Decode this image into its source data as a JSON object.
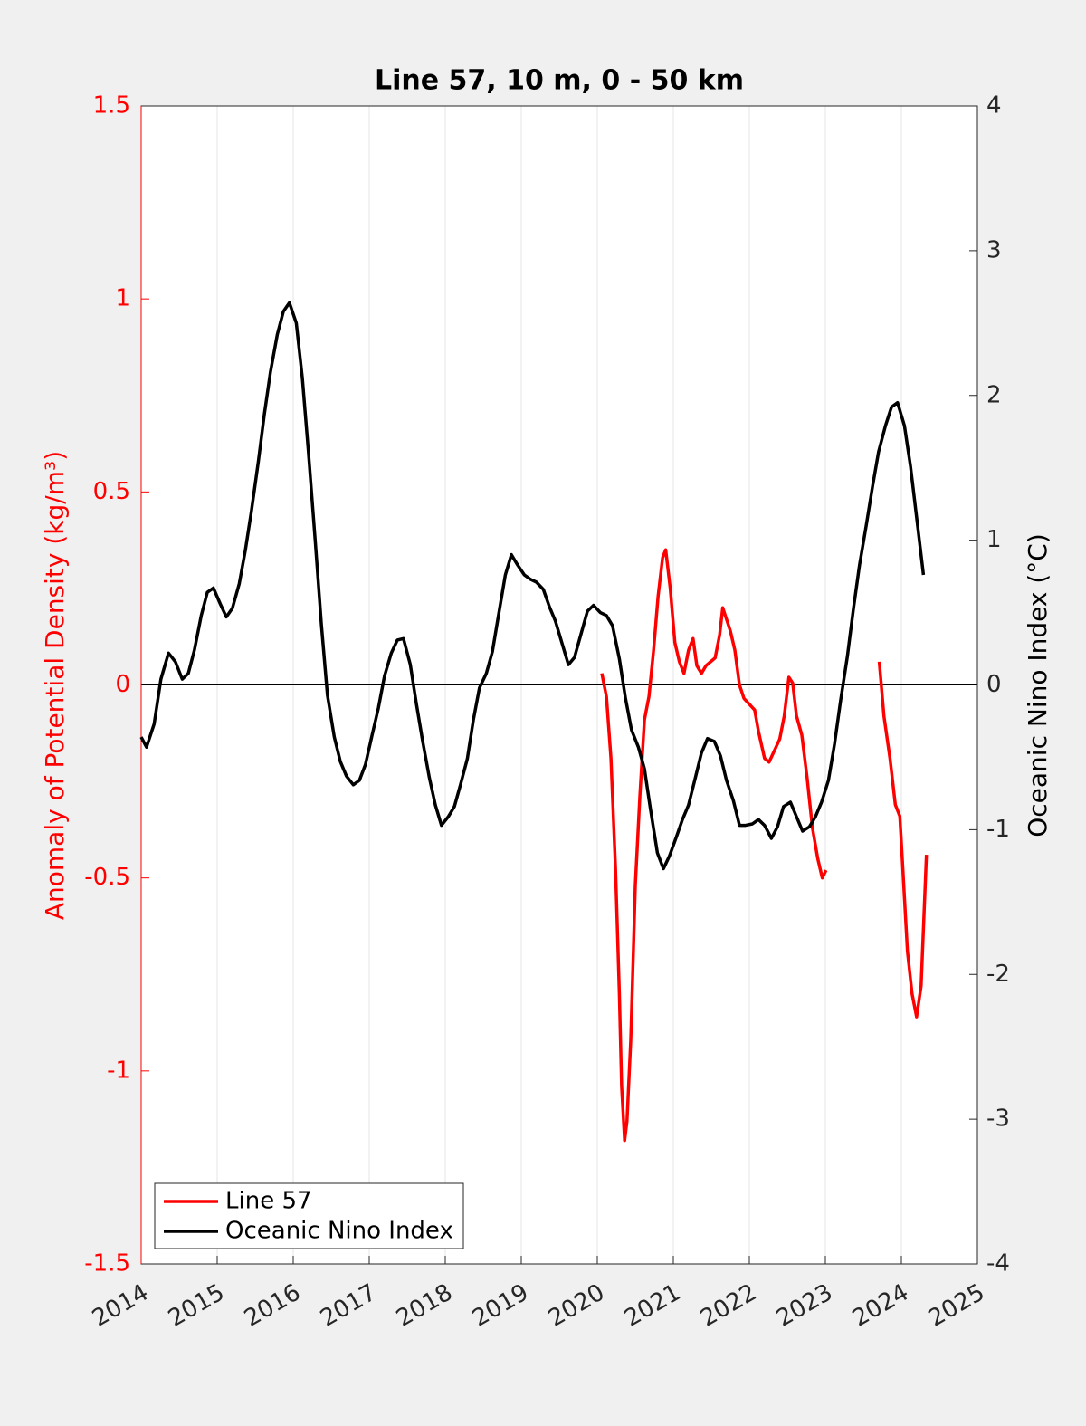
{
  "chart_data": {
    "type": "line",
    "title": "Line 57, 10 m, 0 - 50 km",
    "ylabel": "Anomaly of Potential Density (kg/m³)",
    "y2label": "Oceanic Nino Index (°C)",
    "ylabel_color": "#ff0000",
    "xlim": [
      2014,
      2025
    ],
    "xticks": [
      2014,
      2015,
      2016,
      2017,
      2018,
      2019,
      2020,
      2021,
      2022,
      2023,
      2024,
      2025
    ],
    "ylim": [
      -1.5,
      1.5
    ],
    "yticks": [
      -1.5,
      -1,
      -0.5,
      0,
      0.5,
      1,
      1.5
    ],
    "y2lim": [
      -4,
      4
    ],
    "y2ticks": [
      -4,
      -3,
      -2,
      -1,
      0,
      1,
      2,
      3,
      4
    ],
    "grid": "x",
    "legend": "lower left",
    "series": [
      {
        "name": "Line 57",
        "color": "#ff0000",
        "x": [
          2020.06,
          2020.12,
          2020.18,
          2020.24,
          2020.29,
          2020.32,
          2020.36,
          2020.39,
          2020.44,
          2020.5,
          2020.56,
          2020.62,
          2020.68,
          2020.74,
          2020.8,
          2020.86,
          2020.9,
          2020.96,
          2021.02,
          2021.08,
          2021.14,
          2021.2,
          2021.26,
          2021.31,
          2021.37,
          2021.43,
          2021.49,
          2021.55,
          2021.61,
          2021.65,
          2021.7,
          2021.75,
          2021.81,
          2021.87,
          2021.93,
          2022.0,
          2022.07,
          2022.12,
          2022.2,
          2022.26,
          2022.33,
          2022.4,
          2022.46,
          2022.52,
          2022.57,
          2022.62,
          2022.69,
          2022.76,
          2022.83,
          2022.9,
          2022.96,
          2023.01,
          2023.35,
          2023.71,
          2023.77,
          2023.85,
          2023.92,
          2023.98,
          2024.02,
          2024.08,
          2024.14,
          2024.2,
          2024.26,
          2024.33
        ],
        "values": [
          0.03,
          -0.03,
          -0.19,
          -0.48,
          -0.8,
          -1.04,
          -1.18,
          -1.13,
          -0.92,
          -0.52,
          -0.29,
          -0.09,
          -0.03,
          0.09,
          0.23,
          0.33,
          0.35,
          0.25,
          0.11,
          0.06,
          0.03,
          0.09,
          0.12,
          0.05,
          0.03,
          0.05,
          0.06,
          0.07,
          0.13,
          0.2,
          0.17,
          0.14,
          0.09,
          0,
          -0.035,
          -0.05,
          -0.065,
          -0.12,
          -0.19,
          -0.2,
          -0.17,
          -0.14,
          -0.08,
          0.02,
          0.005,
          -0.08,
          -0.13,
          -0.24,
          -0.37,
          -0.45,
          -0.5,
          -0.48,
          null,
          0.06,
          -0.08,
          -0.19,
          -0.31,
          -0.34,
          -0.48,
          -0.69,
          -0.8,
          -0.86,
          -0.78,
          -0.44
        ]
      },
      {
        "name": "Oceanic Nino Index",
        "color": "#000000",
        "axis": "y2",
        "x": [
          2014.0,
          2014.07,
          2014.17,
          2014.26,
          2014.36,
          2014.45,
          2014.54,
          2014.62,
          2014.7,
          2014.79,
          2014.87,
          2014.95,
          2015.04,
          2015.12,
          2015.2,
          2015.29,
          2015.37,
          2015.45,
          2015.54,
          2015.62,
          2015.7,
          2015.79,
          2015.87,
          2015.95,
          2016.04,
          2016.12,
          2016.2,
          2016.29,
          2016.37,
          2016.45,
          2016.54,
          2016.62,
          2016.7,
          2016.79,
          2016.87,
          2016.95,
          2017.04,
          2017.12,
          2017.2,
          2017.29,
          2017.37,
          2017.45,
          2017.54,
          2017.62,
          2017.7,
          2017.79,
          2017.87,
          2017.95,
          2018.04,
          2018.12,
          2018.2,
          2018.29,
          2018.37,
          2018.45,
          2018.54,
          2018.62,
          2018.7,
          2018.79,
          2018.87,
          2018.95,
          2019.04,
          2019.12,
          2019.2,
          2019.29,
          2019.37,
          2019.45,
          2019.54,
          2019.62,
          2019.7,
          2019.79,
          2019.87,
          2019.95,
          2020.04,
          2020.12,
          2020.2,
          2020.29,
          2020.37,
          2020.45,
          2020.54,
          2020.62,
          2020.7,
          2020.79,
          2020.87,
          2020.95,
          2021.04,
          2021.12,
          2021.2,
          2021.29,
          2021.37,
          2021.45,
          2021.54,
          2021.62,
          2021.7,
          2021.79,
          2021.87,
          2021.95,
          2022.04,
          2022.12,
          2022.2,
          2022.29,
          2022.37,
          2022.45,
          2022.54,
          2022.62,
          2022.7,
          2022.79,
          2022.87,
          2022.95,
          2023.04,
          2023.12,
          2023.2,
          2023.29,
          2023.37,
          2023.45,
          2023.54,
          2023.62,
          2023.7,
          2023.79,
          2023.87,
          2023.95,
          2024.04,
          2024.12,
          2024.2,
          2024.29
        ],
        "values": [
          -0.36,
          -0.43,
          -0.27,
          0.04,
          0.22,
          0.16,
          0.04,
          0.08,
          0.24,
          0.48,
          0.64,
          0.67,
          0.56,
          0.47,
          0.53,
          0.7,
          0.93,
          1.2,
          1.54,
          1.87,
          2.16,
          2.42,
          2.58,
          2.64,
          2.5,
          2.12,
          1.61,
          0.99,
          0.42,
          -0.07,
          -0.36,
          -0.53,
          -0.63,
          -0.69,
          -0.66,
          -0.55,
          -0.34,
          -0.16,
          0.06,
          0.22,
          0.31,
          0.32,
          0.14,
          -0.13,
          -0.38,
          -0.64,
          -0.83,
          -0.97,
          -0.91,
          -0.84,
          -0.69,
          -0.51,
          -0.24,
          -0.02,
          0.08,
          0.23,
          0.48,
          0.76,
          0.9,
          0.83,
          0.76,
          0.73,
          0.71,
          0.66,
          0.54,
          0.44,
          0.28,
          0.14,
          0.19,
          0.36,
          0.51,
          0.55,
          0.5,
          0.48,
          0.41,
          0.18,
          -0.09,
          -0.31,
          -0.43,
          -0.58,
          -0.86,
          -1.16,
          -1.27,
          -1.18,
          -1.05,
          -0.93,
          -0.83,
          -0.64,
          -0.47,
          -0.37,
          -0.39,
          -0.49,
          -0.66,
          -0.8,
          -0.97,
          -0.97,
          -0.96,
          -0.93,
          -0.97,
          -1.06,
          -0.98,
          -0.84,
          -0.81,
          -0.91,
          -1.01,
          -0.98,
          -0.91,
          -0.81,
          -0.66,
          -0.41,
          -0.11,
          0.2,
          0.53,
          0.83,
          1.11,
          1.37,
          1.61,
          1.79,
          1.92,
          1.95,
          1.79,
          1.51,
          1.16,
          0.76
        ]
      }
    ]
  }
}
